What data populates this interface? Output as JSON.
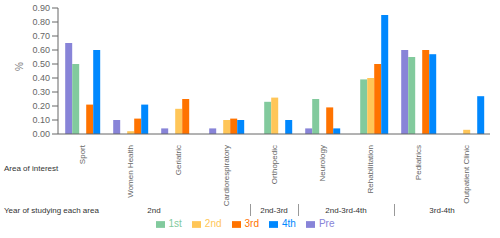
{
  "chart_data": {
    "type": "bar",
    "categories": [
      "Sport",
      "Women Health",
      "Geriatric",
      "Cardiorespiratory",
      "Orthopedic",
      "Neurology",
      "Rehabilitation",
      "Pediatrics",
      "Outpatient Clinic"
    ],
    "series": [
      {
        "name": "Pre",
        "color": "#8884d8",
        "values": [
          0.65,
          0.1,
          0.04,
          0.04,
          0.0,
          0.04,
          0.0,
          0.6,
          0.0
        ]
      },
      {
        "name": "1st",
        "color": "#82ca9d",
        "values": [
          0.5,
          0.0,
          0.0,
          0.0,
          0.23,
          0.25,
          0.39,
          0.55,
          0.0
        ]
      },
      {
        "name": "2nd",
        "color": "#ffc658",
        "values": [
          0.0,
          0.02,
          0.18,
          0.1,
          0.26,
          0.0,
          0.4,
          0.0,
          0.03
        ]
      },
      {
        "name": "3rd",
        "color": "#ff7300",
        "values": [
          0.21,
          0.11,
          0.25,
          0.11,
          0.0,
          0.19,
          0.5,
          0.6,
          0.0
        ]
      },
      {
        "name": "4th",
        "color": "#0088fe",
        "values": [
          0.6,
          0.21,
          0.0,
          0.1,
          0.1,
          0.04,
          0.85,
          0.57,
          0.27
        ]
      }
    ],
    "ylabel": "%",
    "xlabel": "Area of interest",
    "ylim": [
      0.0,
      0.9
    ],
    "yticks": [
      {
        "value": 0.0,
        "label": "0.00"
      },
      {
        "value": 0.1,
        "label": "0.10"
      },
      {
        "value": 0.2,
        "label": "0.20"
      },
      {
        "value": 0.3,
        "label": "0.30"
      },
      {
        "value": 0.4,
        "label": "0.40"
      },
      {
        "value": 0.5,
        "label": "0.50"
      },
      {
        "value": 0.6,
        "label": "0.60"
      },
      {
        "value": 0.7,
        "label": "0.70"
      },
      {
        "value": 0.8,
        "label": "0.80"
      },
      {
        "value": 0.9,
        "label": "0.90"
      }
    ],
    "grid": false,
    "legend": "bottom",
    "x_groups": {
      "label": "Year of studying each area",
      "groups": [
        {
          "label": "2nd",
          "categories": [
            "Sport",
            "Women Health",
            "Geriatric",
            "Cardiorespiratory"
          ]
        },
        {
          "label": "2nd-3rd",
          "categories": [
            "Orthopedic"
          ]
        },
        {
          "label": "2nd-3rd-4th",
          "categories": [
            "Neurology",
            "Rehabilitation"
          ]
        },
        {
          "label": "3rd-4th",
          "categories": [
            "Pediatrics",
            "Outpatient Clinic"
          ]
        }
      ]
    }
  }
}
